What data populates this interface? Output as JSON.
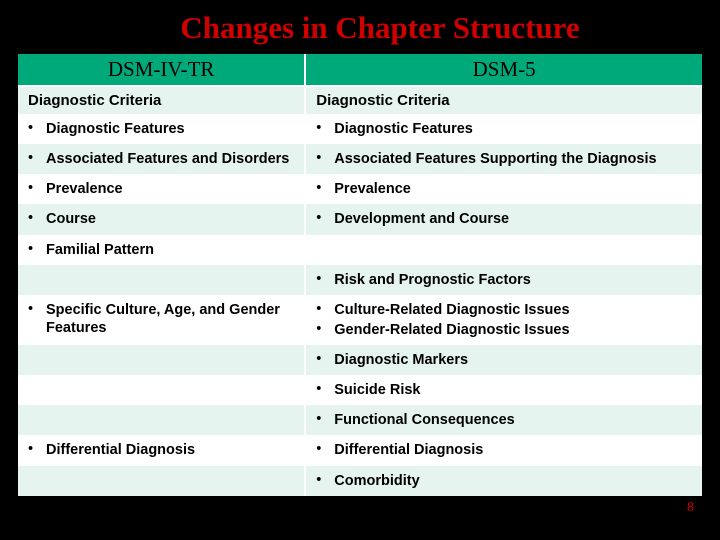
{
  "title": "Changes in Chapter Structure",
  "page_number": "8",
  "colors": {
    "background": "#000000",
    "title": "#d00000",
    "header_bg": "#00a97a",
    "band_light": "#e6f4ef",
    "band_white": "#ffffff",
    "page_num": "#d00000"
  },
  "columns": {
    "left_header": "DSM-IV-TR",
    "right_header": "DSM-5"
  },
  "rows": [
    {
      "band": "light",
      "left_type": "subheader",
      "left": "Diagnostic Criteria",
      "right_type": "subheader",
      "right": "Diagnostic Criteria"
    },
    {
      "band": "white",
      "left_type": "bullet",
      "left": "Diagnostic Features",
      "right_type": "bullet",
      "right": "Diagnostic Features"
    },
    {
      "band": "light",
      "left_type": "bullet",
      "left": "Associated Features and Disorders",
      "right_type": "bullet",
      "right": "Associated Features Supporting the Diagnosis"
    },
    {
      "band": "white",
      "left_type": "bullet",
      "left": "Prevalence",
      "right_type": "bullet",
      "right": "Prevalence"
    },
    {
      "band": "light",
      "left_type": "bullet",
      "left": "Course",
      "right_type": "bullet",
      "right": "Development and Course"
    },
    {
      "band": "white",
      "left_type": "bullet",
      "left": "Familial Pattern",
      "right_type": "empty",
      "right": ""
    },
    {
      "band": "light",
      "left_type": "empty",
      "left": "",
      "right_type": "bullet",
      "right": "Risk and Prognostic Factors"
    },
    {
      "band": "white",
      "left_type": "bullet",
      "left": "Specific Culture, Age, and Gender Features",
      "right_type": "double",
      "right": "Culture-Related Diagnostic Issues",
      "right2": "Gender-Related Diagnostic Issues"
    },
    {
      "band": "light",
      "left_type": "empty",
      "left": "",
      "right_type": "bullet",
      "right": "Diagnostic Markers"
    },
    {
      "band": "white",
      "left_type": "empty",
      "left": "",
      "right_type": "bullet",
      "right": "Suicide Risk"
    },
    {
      "band": "light",
      "left_type": "empty",
      "left": "",
      "right_type": "bullet",
      "right": "Functional Consequences"
    },
    {
      "band": "white",
      "left_type": "bullet",
      "left": "Differential Diagnosis",
      "right_type": "bullet",
      "right": "Differential Diagnosis"
    },
    {
      "band": "light",
      "left_type": "empty",
      "left": "",
      "right_type": "bullet",
      "right": "Comorbidity"
    }
  ]
}
